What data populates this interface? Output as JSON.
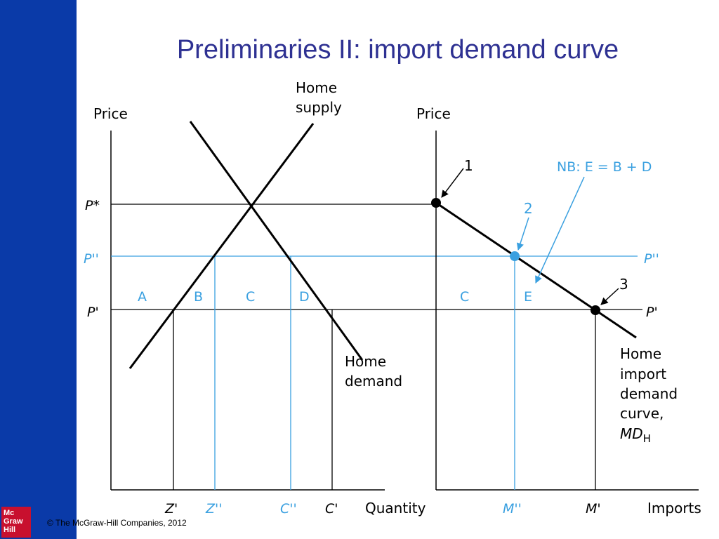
{
  "slide": {
    "title": "Preliminaries II: import demand curve",
    "copyright": "© The McGraw-Hill Companies, 2012",
    "logo": [
      "Mc",
      "Graw",
      "Hill"
    ]
  },
  "colors": {
    "sidebar": "#0a3aa8",
    "title": "#2e3192",
    "accent": "#3aa0e0",
    "logo": "#c8102e"
  },
  "left_panel": {
    "y_axis_label": "Price",
    "x_axis_label": "Quantity",
    "supply_label_line1": "Home",
    "supply_label_line2": "supply",
    "demand_label_line1": "Home",
    "demand_label_line2": "demand",
    "price_labels": {
      "p_star": "P*",
      "p_double": "P''",
      "p_prime": "P'"
    },
    "area_labels": {
      "a": "A",
      "b": "B",
      "c": "C",
      "d": "D"
    },
    "x_ticks": {
      "z_prime": "Z'",
      "z_double": "Z''",
      "c_double": "C''",
      "c_prime": "C'"
    }
  },
  "right_panel": {
    "y_axis_label": "Price",
    "x_axis_label": "Imports",
    "note": "NB: E = B + D",
    "point_labels": {
      "p1": "1",
      "p2": "2",
      "p3": "3"
    },
    "area_labels": {
      "c": "C",
      "e": "E"
    },
    "price_labels": {
      "p_double": "P''",
      "p_prime": "P'"
    },
    "x_ticks": {
      "m_double": "M''",
      "m_prime": "M'"
    },
    "curve_label": [
      "Home",
      "import",
      "demand",
      "curve,"
    ],
    "curve_symbol": "MD",
    "curve_subscript": "H"
  }
}
